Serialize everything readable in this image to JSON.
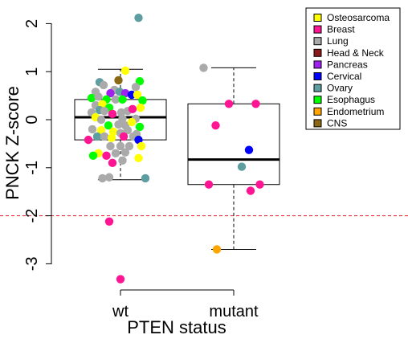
{
  "chart_data": {
    "type": "boxplot",
    "xlabel": "PTEN status",
    "ylabel": "PNCK Z-score",
    "ylim": [
      -3.35,
      2.3
    ],
    "yticks": [
      -3,
      -2,
      -1,
      0,
      1,
      2
    ],
    "threshold": {
      "value": -2,
      "color": "#e8202e",
      "style": "dashed"
    },
    "legend": {
      "placement": "top-right",
      "entries": [
        {
          "label": "Osteosarcoma",
          "color": "#ffff00"
        },
        {
          "label": "Breast",
          "color": "#ff1493"
        },
        {
          "label": "Lung",
          "color": "#aaaaaa"
        },
        {
          "label": "Head & Neck",
          "color": "#8b1a1a"
        },
        {
          "label": "Pancreas",
          "color": "#a020f0"
        },
        {
          "label": "Cervical",
          "color": "#0000ff"
        },
        {
          "label": "Ovary",
          "color": "#5f9ea0"
        },
        {
          "label": "Esophagus",
          "color": "#00ff00"
        },
        {
          "label": "Endometrium",
          "color": "#ffa500"
        },
        {
          "label": "CNS",
          "color": "#8b6914"
        }
      ]
    },
    "groups": [
      {
        "name": "wt",
        "box": {
          "lower_whisker": -1.25,
          "q1": -0.42,
          "median": 0.05,
          "q3": 0.42,
          "upper_whisker": 1.05
        },
        "points": [
          {
            "j": 0.45,
            "y": 2.12,
            "c": "Ovary"
          },
          {
            "j": 0.12,
            "y": 1.02,
            "c": "Osteosarcoma"
          },
          {
            "j": -0.05,
            "y": 0.82,
            "c": "CNS"
          },
          {
            "j": 0.48,
            "y": 0.8,
            "c": "Esophagus"
          },
          {
            "j": -0.52,
            "y": 0.78,
            "c": "Ovary"
          },
          {
            "j": -0.42,
            "y": 0.72,
            "c": "Lung"
          },
          {
            "j": -0.15,
            "y": 0.62,
            "c": "Lung"
          },
          {
            "j": 0.38,
            "y": 0.68,
            "c": "Lung"
          },
          {
            "j": -0.62,
            "y": 0.58,
            "c": "Lung"
          },
          {
            "j": -0.25,
            "y": 0.55,
            "c": "Pancreas"
          },
          {
            "j": -0.02,
            "y": 0.58,
            "c": "Ovary"
          },
          {
            "j": 0.12,
            "y": 0.55,
            "c": "Pancreas"
          },
          {
            "j": 0.28,
            "y": 0.52,
            "c": "Cervical"
          },
          {
            "j": 0.42,
            "y": 0.52,
            "c": "Osteosarcoma"
          },
          {
            "j": -0.72,
            "y": 0.45,
            "c": "Esophagus"
          },
          {
            "j": -0.55,
            "y": 0.48,
            "c": "Lung"
          },
          {
            "j": -0.35,
            "y": 0.42,
            "c": "Esophagus"
          },
          {
            "j": -0.12,
            "y": 0.42,
            "c": "Lung"
          },
          {
            "j": 0.05,
            "y": 0.42,
            "c": "Esophagus"
          },
          {
            "j": 0.55,
            "y": 0.4,
            "c": "Esophagus"
          },
          {
            "j": -0.62,
            "y": 0.3,
            "c": "Lung"
          },
          {
            "j": -0.45,
            "y": 0.32,
            "c": "Osteosarcoma"
          },
          {
            "j": -0.28,
            "y": 0.25,
            "c": "Esophagus"
          },
          {
            "j": -0.52,
            "y": 0.2,
            "c": "Ovary"
          },
          {
            "j": -0.72,
            "y": 0.15,
            "c": "Lung"
          },
          {
            "j": -0.4,
            "y": 0.18,
            "c": "Lung"
          },
          {
            "j": -0.2,
            "y": 0.12,
            "c": "Breast"
          },
          {
            "j": 0.02,
            "y": 0.15,
            "c": "Lung"
          },
          {
            "j": 0.18,
            "y": 0.18,
            "c": "Lung"
          },
          {
            "j": 0.3,
            "y": 0.22,
            "c": "Breast"
          },
          {
            "j": 0.5,
            "y": 0.25,
            "c": "Osteosarcoma"
          },
          {
            "j": -0.62,
            "y": 0.05,
            "c": "Osteosarcoma"
          },
          {
            "j": -0.48,
            "y": 0.0,
            "c": "Lung"
          },
          {
            "j": 0.05,
            "y": 0.02,
            "c": "Lung"
          },
          {
            "j": 0.38,
            "y": 0.02,
            "c": "Lung"
          },
          {
            "j": -0.3,
            "y": -0.12,
            "c": "Esophagus"
          },
          {
            "j": -0.05,
            "y": -0.1,
            "c": "Lung"
          },
          {
            "j": 0.12,
            "y": -0.12,
            "c": "Lung"
          },
          {
            "j": 0.28,
            "y": -0.05,
            "c": "Osteosarcoma"
          },
          {
            "j": 0.48,
            "y": -0.15,
            "c": "Esophagus"
          },
          {
            "j": -0.7,
            "y": -0.2,
            "c": "Lung"
          },
          {
            "j": -0.48,
            "y": -0.22,
            "c": "Osteosarcoma"
          },
          {
            "j": -0.18,
            "y": -0.25,
            "c": "Osteosarcoma"
          },
          {
            "j": 0.0,
            "y": -0.28,
            "c": "Lung"
          },
          {
            "j": 0.18,
            "y": -0.22,
            "c": "Lung"
          },
          {
            "j": 0.4,
            "y": -0.3,
            "c": "Lung"
          },
          {
            "j": -0.58,
            "y": -0.35,
            "c": "Ovary"
          },
          {
            "j": -0.4,
            "y": -0.35,
            "c": "Lung"
          },
          {
            "j": -0.22,
            "y": -0.38,
            "c": "Osteosarcoma"
          },
          {
            "j": 0.08,
            "y": -0.35,
            "c": "Breast"
          },
          {
            "j": 0.32,
            "y": -0.35,
            "c": "Lung"
          },
          {
            "j": 0.45,
            "y": -0.42,
            "c": "Cervical"
          },
          {
            "j": -0.8,
            "y": -0.42,
            "c": "Breast"
          },
          {
            "j": -0.25,
            "y": -0.55,
            "c": "Lung"
          },
          {
            "j": 0.0,
            "y": -0.55,
            "c": "Lung"
          },
          {
            "j": 0.22,
            "y": -0.55,
            "c": "Lung"
          },
          {
            "j": 0.52,
            "y": -0.55,
            "c": "Osteosarcoma"
          },
          {
            "j": -0.55,
            "y": -0.7,
            "c": "Osteosarcoma"
          },
          {
            "j": -0.35,
            "y": -0.75,
            "c": "Breast"
          },
          {
            "j": -0.12,
            "y": -0.7,
            "c": "Lung"
          },
          {
            "j": 0.12,
            "y": -0.68,
            "c": "Lung"
          },
          {
            "j": 0.45,
            "y": -0.8,
            "c": "Osteosarcoma"
          },
          {
            "j": -0.68,
            "y": -0.75,
            "c": "Esophagus"
          },
          {
            "j": -0.2,
            "y": -0.9,
            "c": "Breast"
          },
          {
            "j": 0.05,
            "y": -0.85,
            "c": "Lung"
          },
          {
            "j": -0.45,
            "y": -1.22,
            "c": "Lung"
          },
          {
            "j": -0.28,
            "y": -1.2,
            "c": "Lung"
          },
          {
            "j": 0.62,
            "y": -1.22,
            "c": "Ovary"
          },
          {
            "j": -0.28,
            "y": -2.12,
            "c": "Breast"
          },
          {
            "j": 0.0,
            "y": -3.32,
            "c": "Breast"
          }
        ]
      },
      {
        "name": "mutant",
        "box": {
          "lower_whisker": -2.7,
          "q1": -1.35,
          "median": -0.83,
          "q3": 0.33,
          "upper_whisker": 1.08
        },
        "points": [
          {
            "j": -0.75,
            "y": 1.08,
            "c": "Lung"
          },
          {
            "j": -0.12,
            "y": 0.33,
            "c": "Breast"
          },
          {
            "j": 0.55,
            "y": 0.33,
            "c": "Breast"
          },
          {
            "j": -0.45,
            "y": -0.12,
            "c": "Breast"
          },
          {
            "j": 0.38,
            "y": -0.63,
            "c": "Cervical"
          },
          {
            "j": 0.2,
            "y": -0.98,
            "c": "Ovary"
          },
          {
            "j": -0.62,
            "y": -1.35,
            "c": "Breast"
          },
          {
            "j": 0.65,
            "y": -1.35,
            "c": "Breast"
          },
          {
            "j": 0.42,
            "y": -1.48,
            "c": "Breast"
          },
          {
            "j": -0.42,
            "y": -2.7,
            "c": "Endometrium"
          }
        ]
      }
    ]
  }
}
